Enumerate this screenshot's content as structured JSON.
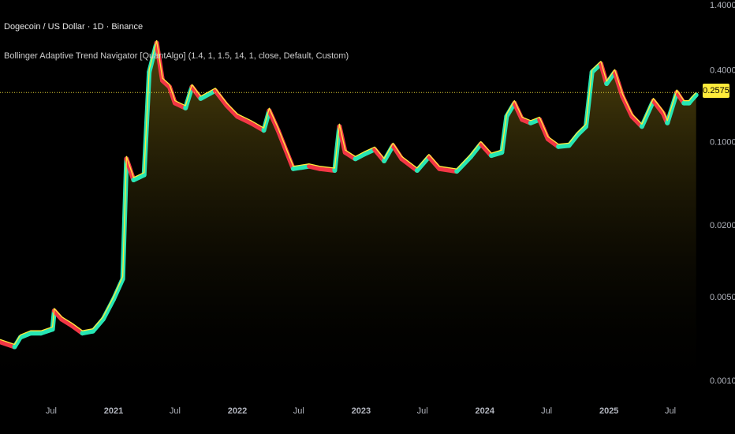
{
  "header": {
    "symbol_title": "Dogecoin / US Dollar · 1D · Binance",
    "indicator_title": "Bollinger Adaptive Trend Navigator [QuantAlgo] (1.4, 1, 1.5, 14, 1, close, Default, Custom)"
  },
  "price_badge": "0.2575",
  "colors": {
    "background": "#000000",
    "price_line": "#ffeb3b",
    "trend_up": "#26e6b4",
    "trend_down": "#f23645",
    "fill_top": "#6b5a10",
    "axis_text": "#b2b5be"
  },
  "chart_data": {
    "type": "line",
    "scale": "log",
    "ylim": [
      0.001,
      1.4
    ],
    "y_ticks": [
      "1.4000",
      "0.4000",
      "0.1000",
      "0.0200",
      "0.0050",
      "0.0010"
    ],
    "y_tick_values": [
      1.4,
      0.4,
      0.1,
      0.02,
      0.005,
      0.001
    ],
    "x_ticks": [
      "Jul",
      "2021",
      "Jul",
      "2022",
      "Jul",
      "2023",
      "Jul",
      "2024",
      "Jul",
      "2025",
      "Jul"
    ],
    "x_tick_dates": [
      "2020-07-01",
      "2021-01-01",
      "2021-07-01",
      "2022-01-01",
      "2022-07-01",
      "2023-01-01",
      "2023-07-01",
      "2024-01-01",
      "2024-07-01",
      "2025-01-01",
      "2025-07-01"
    ],
    "current_price": 0.2575,
    "series": [
      {
        "name": "",
        "values": [
          [
            "2020-02-01",
            0.0022
          ],
          [
            "2020-03-15",
            0.002
          ],
          [
            "2020-04-01",
            0.0024
          ],
          [
            "2020-05-01",
            0.0026
          ],
          [
            "2020-06-01",
            0.0026
          ],
          [
            "2020-07-05",
            0.0028
          ],
          [
            "2020-07-10",
            0.004
          ],
          [
            "2020-08-01",
            0.0034
          ],
          [
            "2020-09-01",
            0.003
          ],
          [
            "2020-10-01",
            0.0026
          ],
          [
            "2020-11-01",
            0.0027
          ],
          [
            "2020-12-01",
            0.0034
          ],
          [
            "2021-01-01",
            0.005
          ],
          [
            "2021-01-28",
            0.0074
          ],
          [
            "2021-02-08",
            0.075
          ],
          [
            "2021-03-01",
            0.05
          ],
          [
            "2021-04-01",
            0.055
          ],
          [
            "2021-04-16",
            0.4
          ],
          [
            "2021-05-08",
            0.7
          ],
          [
            "2021-05-25",
            0.34
          ],
          [
            "2021-06-15",
            0.3
          ],
          [
            "2021-07-01",
            0.22
          ],
          [
            "2021-08-01",
            0.2
          ],
          [
            "2021-08-20",
            0.3
          ],
          [
            "2021-09-15",
            0.24
          ],
          [
            "2021-10-28",
            0.28
          ],
          [
            "2021-12-01",
            0.21
          ],
          [
            "2022-01-01",
            0.17
          ],
          [
            "2022-02-10",
            0.15
          ],
          [
            "2022-03-20",
            0.13
          ],
          [
            "2022-04-05",
            0.19
          ],
          [
            "2022-05-01",
            0.13
          ],
          [
            "2022-06-15",
            0.062
          ],
          [
            "2022-08-01",
            0.065
          ],
          [
            "2022-09-01",
            0.062
          ],
          [
            "2022-10-15",
            0.06
          ],
          [
            "2022-10-29",
            0.14
          ],
          [
            "2022-11-15",
            0.085
          ],
          [
            "2022-12-15",
            0.075
          ],
          [
            "2023-01-10",
            0.082
          ],
          [
            "2023-02-10",
            0.09
          ],
          [
            "2023-03-10",
            0.072
          ],
          [
            "2023-04-05",
            0.097
          ],
          [
            "2023-05-01",
            0.075
          ],
          [
            "2023-06-15",
            0.06
          ],
          [
            "2023-07-20",
            0.078
          ],
          [
            "2023-08-20",
            0.062
          ],
          [
            "2023-10-10",
            0.059
          ],
          [
            "2023-11-20",
            0.078
          ],
          [
            "2023-12-20",
            0.1
          ],
          [
            "2024-01-20",
            0.08
          ],
          [
            "2024-02-20",
            0.085
          ],
          [
            "2024-03-05",
            0.17
          ],
          [
            "2024-03-28",
            0.22
          ],
          [
            "2024-04-20",
            0.16
          ],
          [
            "2024-05-15",
            0.15
          ],
          [
            "2024-06-10",
            0.16
          ],
          [
            "2024-07-05",
            0.11
          ],
          [
            "2024-08-05",
            0.095
          ],
          [
            "2024-09-05",
            0.097
          ],
          [
            "2024-10-01",
            0.12
          ],
          [
            "2024-10-25",
            0.14
          ],
          [
            "2024-11-12",
            0.4
          ],
          [
            "2024-12-08",
            0.47
          ],
          [
            "2024-12-25",
            0.32
          ],
          [
            "2025-01-18",
            0.4
          ],
          [
            "2025-02-10",
            0.25
          ],
          [
            "2025-03-10",
            0.17
          ],
          [
            "2025-04-08",
            0.14
          ],
          [
            "2025-05-12",
            0.23
          ],
          [
            "2025-06-10",
            0.18
          ],
          [
            "2025-06-22",
            0.15
          ],
          [
            "2025-07-20",
            0.27
          ],
          [
            "2025-08-10",
            0.22
          ],
          [
            "2025-08-25",
            0.22
          ],
          [
            "2025-09-05",
            0.24
          ],
          [
            "2025-09-15",
            0.2575
          ]
        ]
      }
    ]
  }
}
